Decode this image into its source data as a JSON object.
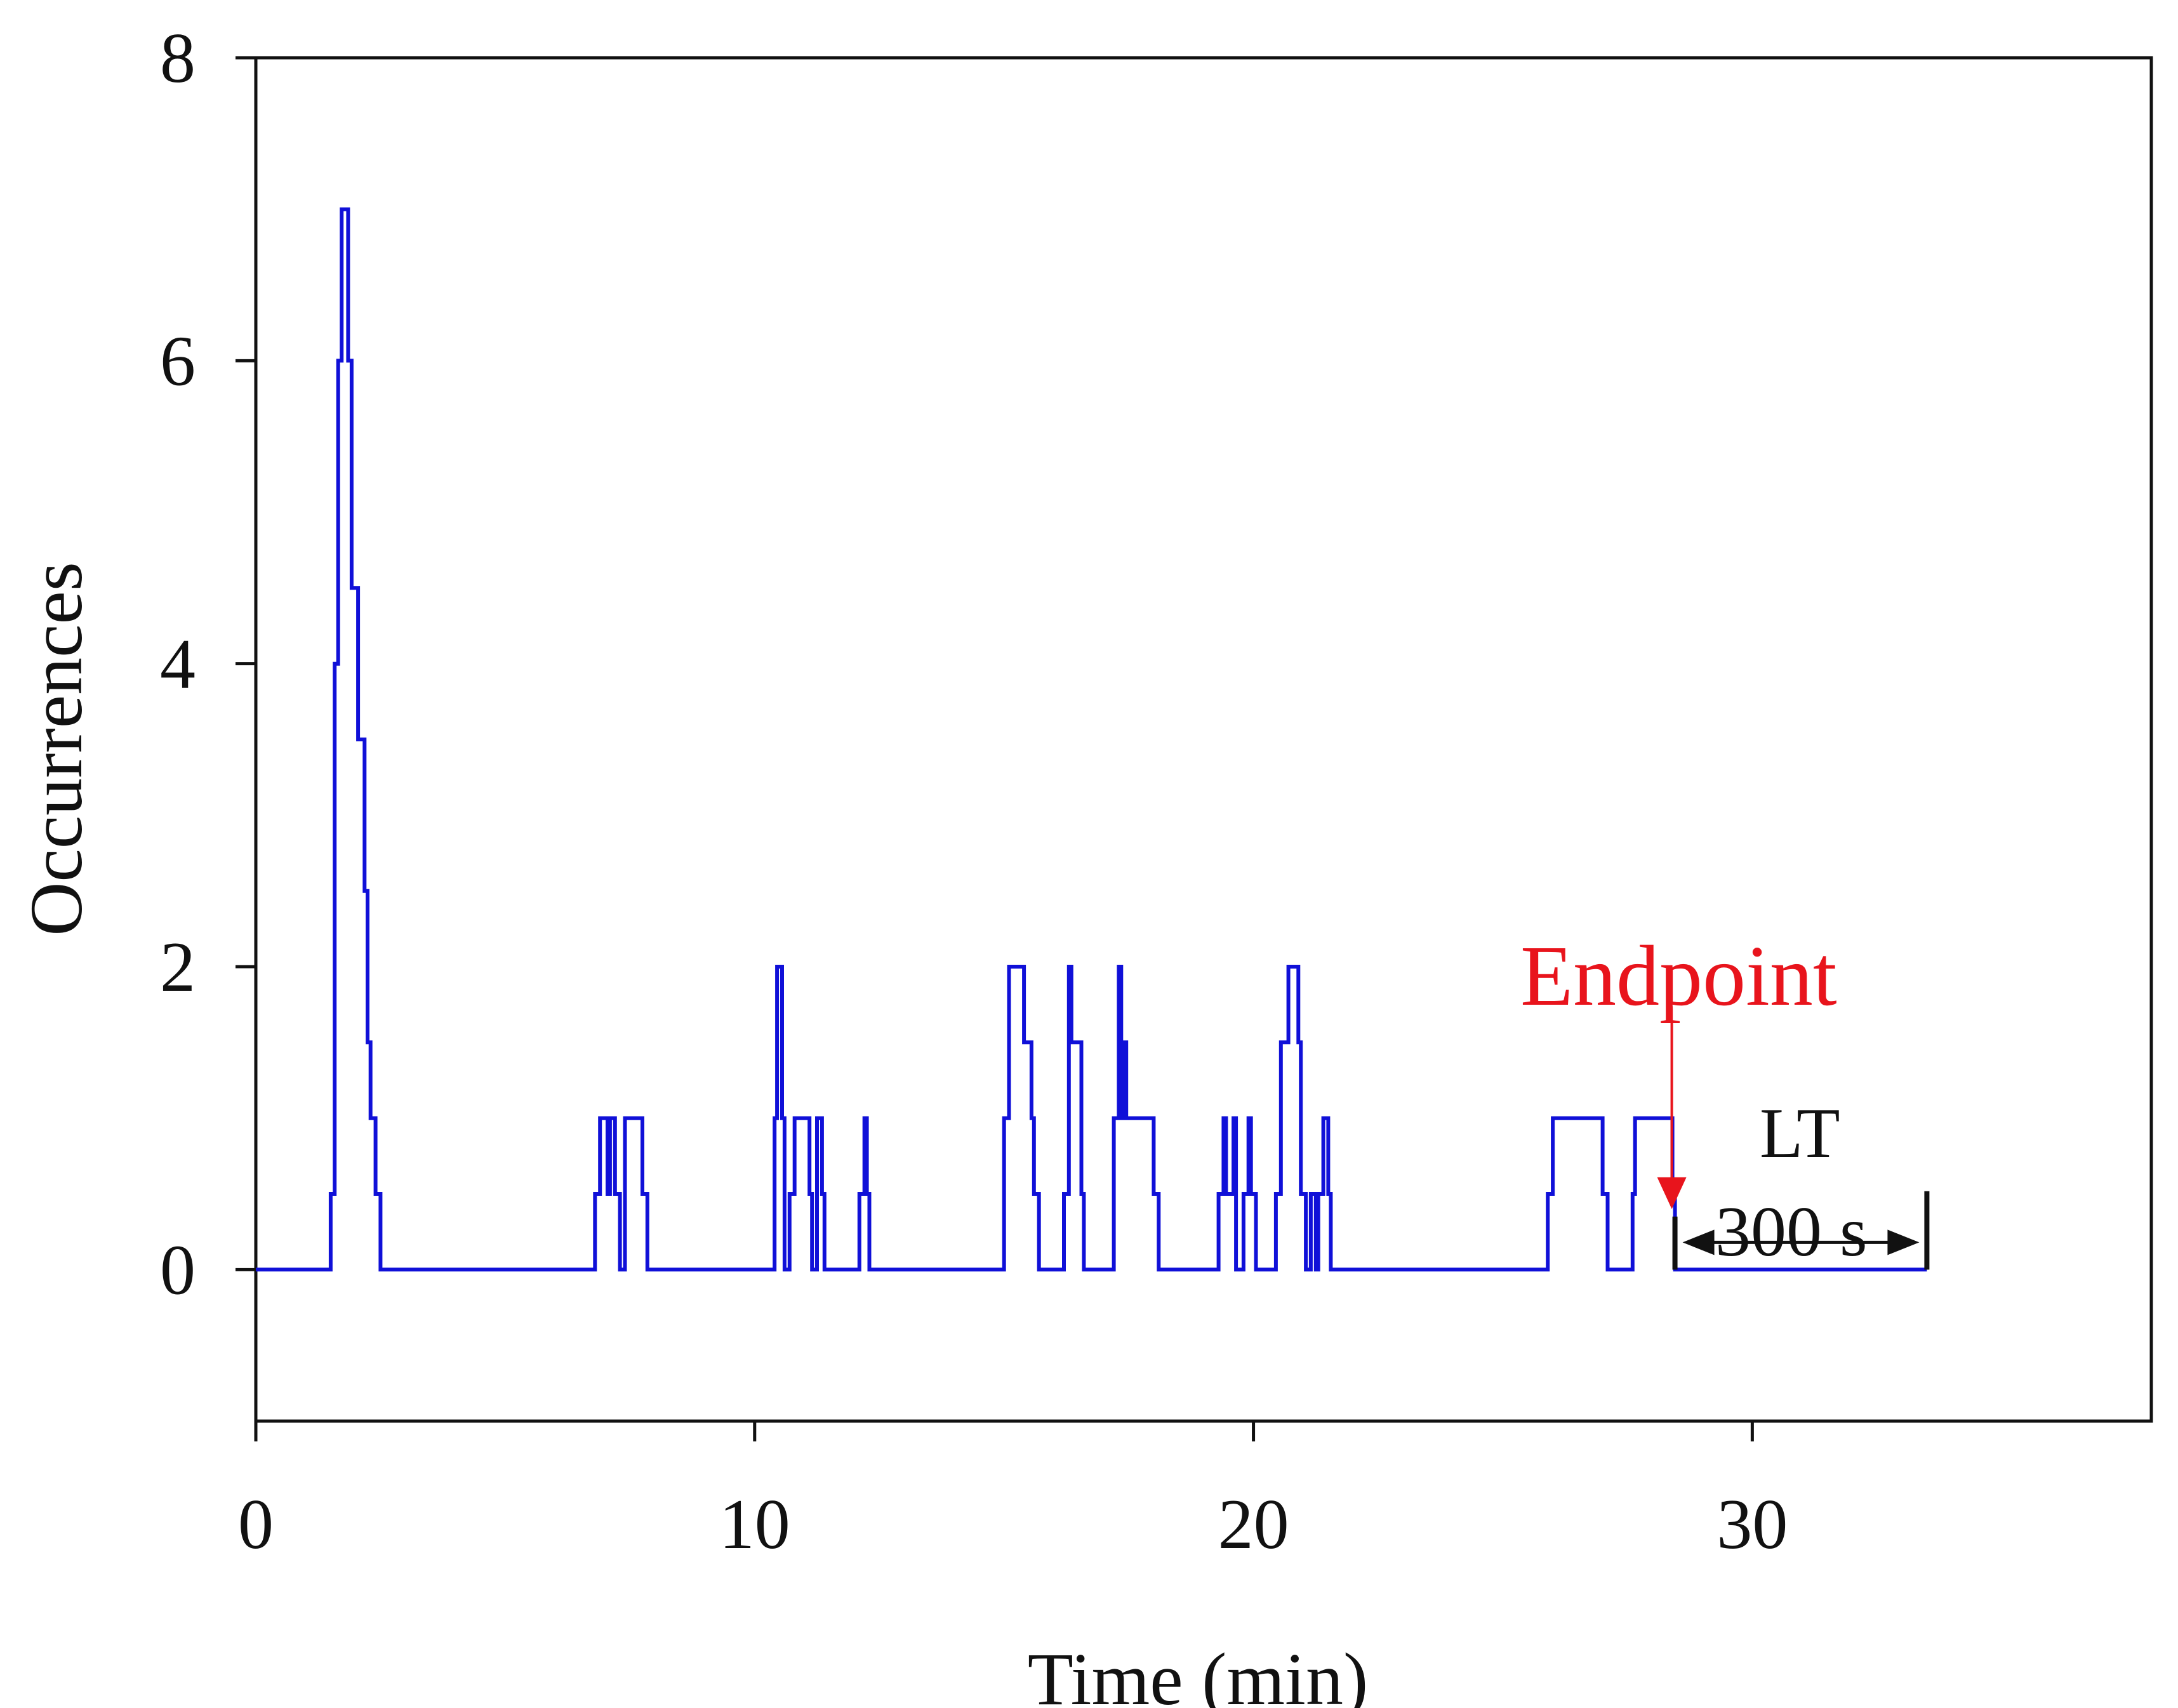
{
  "chart_data": {
    "type": "line",
    "title": "",
    "xlabel": "Time (min)",
    "ylabel": "Occurrences",
    "xlim": [
      0,
      38
    ],
    "ylim": [
      -1,
      8
    ],
    "xticks": [
      0,
      10,
      20,
      30
    ],
    "yticks": [
      0,
      2,
      4,
      6,
      8
    ],
    "x_tick_labels": [
      "0",
      "10",
      "20",
      "30"
    ],
    "y_tick_labels": [
      "0",
      "2",
      "4",
      "6",
      "8"
    ],
    "line_color": "#1010d8",
    "series": [
      {
        "name": "Occurrences",
        "step": true,
        "points": [
          [
            0,
            0
          ],
          [
            1.5,
            0
          ],
          [
            1.5,
            0.5
          ],
          [
            1.58,
            0.5
          ],
          [
            1.58,
            4
          ],
          [
            1.65,
            4
          ],
          [
            1.65,
            6
          ],
          [
            1.72,
            6
          ],
          [
            1.72,
            7
          ],
          [
            1.85,
            7
          ],
          [
            1.85,
            6
          ],
          [
            1.92,
            6
          ],
          [
            1.92,
            4.5
          ],
          [
            2.05,
            4.5
          ],
          [
            2.05,
            3.5
          ],
          [
            2.18,
            3.5
          ],
          [
            2.18,
            2.5
          ],
          [
            2.24,
            2.5
          ],
          [
            2.24,
            1.5
          ],
          [
            2.3,
            1.5
          ],
          [
            2.3,
            1
          ],
          [
            2.4,
            1
          ],
          [
            2.4,
            0.5
          ],
          [
            2.5,
            0.5
          ],
          [
            2.5,
            0
          ],
          [
            6.8,
            0
          ],
          [
            6.8,
            0.5
          ],
          [
            6.9,
            0.5
          ],
          [
            6.9,
            1
          ],
          [
            7.05,
            1
          ],
          [
            7.05,
            0.5
          ],
          [
            7.1,
            0.5
          ],
          [
            7.1,
            1
          ],
          [
            7.2,
            1
          ],
          [
            7.2,
            0.5
          ],
          [
            7.3,
            0.5
          ],
          [
            7.3,
            0
          ],
          [
            7.4,
            0
          ],
          [
            7.4,
            1
          ],
          [
            7.75,
            1
          ],
          [
            7.75,
            0.5
          ],
          [
            7.85,
            0.5
          ],
          [
            7.85,
            0
          ],
          [
            10.4,
            0
          ],
          [
            10.4,
            1
          ],
          [
            10.45,
            1
          ],
          [
            10.45,
            2
          ],
          [
            10.55,
            2
          ],
          [
            10.55,
            1
          ],
          [
            10.6,
            1
          ],
          [
            10.6,
            0
          ],
          [
            10.7,
            0
          ],
          [
            10.7,
            0.5
          ],
          [
            10.8,
            0.5
          ],
          [
            10.8,
            1
          ],
          [
            11.1,
            1
          ],
          [
            11.1,
            0.5
          ],
          [
            11.15,
            0.5
          ],
          [
            11.15,
            0
          ],
          [
            11.25,
            0
          ],
          [
            11.25,
            1
          ],
          [
            11.35,
            1
          ],
          [
            11.35,
            0.5
          ],
          [
            11.4,
            0.5
          ],
          [
            11.4,
            0
          ],
          [
            12.1,
            0
          ],
          [
            12.1,
            0.5
          ],
          [
            12.2,
            0.5
          ],
          [
            12.2,
            1
          ],
          [
            12.25,
            1
          ],
          [
            12.25,
            0.5
          ],
          [
            12.3,
            0.5
          ],
          [
            12.3,
            0
          ],
          [
            15.0,
            0
          ],
          [
            15.0,
            1
          ],
          [
            15.1,
            1
          ],
          [
            15.1,
            2
          ],
          [
            15.4,
            2
          ],
          [
            15.4,
            1.5
          ],
          [
            15.55,
            1.5
          ],
          [
            15.55,
            1
          ],
          [
            15.6,
            1
          ],
          [
            15.6,
            0.5
          ],
          [
            15.7,
            0.5
          ],
          [
            15.7,
            0
          ],
          [
            16.2,
            0
          ],
          [
            16.2,
            0.5
          ],
          [
            16.3,
            0.5
          ],
          [
            16.3,
            2
          ],
          [
            16.35,
            2
          ],
          [
            16.35,
            1.5
          ],
          [
            16.55,
            1.5
          ],
          [
            16.55,
            0.5
          ],
          [
            16.6,
            0.5
          ],
          [
            16.6,
            0
          ],
          [
            17.2,
            0
          ],
          [
            17.2,
            1
          ],
          [
            17.3,
            1
          ],
          [
            17.3,
            2
          ],
          [
            17.35,
            2
          ],
          [
            17.35,
            1
          ],
          [
            17.4,
            1
          ],
          [
            17.4,
            1.5
          ],
          [
            17.45,
            1.5
          ],
          [
            17.45,
            1
          ],
          [
            18.0,
            1
          ],
          [
            18.0,
            0.5
          ],
          [
            18.1,
            0.5
          ],
          [
            18.1,
            0
          ],
          [
            19.3,
            0
          ],
          [
            19.3,
            0.5
          ],
          [
            19.4,
            0.5
          ],
          [
            19.4,
            1
          ],
          [
            19.45,
            1
          ],
          [
            19.45,
            0.5
          ],
          [
            19.6,
            0.5
          ],
          [
            19.6,
            1
          ],
          [
            19.65,
            1
          ],
          [
            19.65,
            0
          ],
          [
            19.8,
            0
          ],
          [
            19.8,
            0.5
          ],
          [
            19.9,
            0.5
          ],
          [
            19.9,
            1
          ],
          [
            19.95,
            1
          ],
          [
            19.95,
            0.5
          ],
          [
            20.05,
            0.5
          ],
          [
            20.05,
            0
          ],
          [
            20.45,
            0
          ],
          [
            20.45,
            0.5
          ],
          [
            20.55,
            0.5
          ],
          [
            20.55,
            1.5
          ],
          [
            20.7,
            1.5
          ],
          [
            20.7,
            2
          ],
          [
            20.9,
            2
          ],
          [
            20.9,
            1.5
          ],
          [
            20.95,
            1.5
          ],
          [
            20.95,
            0.5
          ],
          [
            21.05,
            0.5
          ],
          [
            21.05,
            0
          ],
          [
            21.15,
            0
          ],
          [
            21.15,
            0.5
          ],
          [
            21.25,
            0.5
          ],
          [
            21.25,
            0
          ],
          [
            21.3,
            0
          ],
          [
            21.3,
            0.5
          ],
          [
            21.4,
            0.5
          ],
          [
            21.4,
            1
          ],
          [
            21.5,
            1
          ],
          [
            21.5,
            0.5
          ],
          [
            21.55,
            0.5
          ],
          [
            21.55,
            0
          ],
          [
            25.9,
            0
          ],
          [
            25.9,
            0.5
          ],
          [
            26.0,
            0.5
          ],
          [
            26.0,
            1
          ],
          [
            27.0,
            1
          ],
          [
            27.0,
            0.5
          ],
          [
            27.1,
            0.5
          ],
          [
            27.1,
            0
          ],
          [
            27.6,
            0
          ],
          [
            27.6,
            0.5
          ],
          [
            27.65,
            0.5
          ],
          [
            27.65,
            1
          ],
          [
            28.4,
            1
          ],
          [
            28.4,
            0.5
          ],
          [
            28.45,
            0.5
          ],
          [
            28.45,
            0
          ],
          [
            33.5,
            0
          ]
        ]
      }
    ],
    "annotations": {
      "endpoint_label": "Endpoint",
      "endpoint_x": 28.45,
      "window_label_top": "LT",
      "window_label_value": "300 s",
      "window_start": 28.45,
      "window_end": 33.5,
      "endpoint_color": "#e8141c"
    }
  }
}
